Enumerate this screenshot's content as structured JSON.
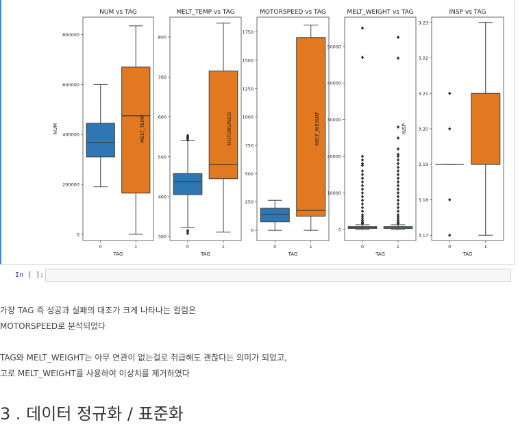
{
  "notebook": {
    "prompt": "In [ ]:",
    "code_input": "",
    "paragraph1_line1": "가장 TAG 즉 성공과 실패의 대조가 크게 나타나는 컬럼은",
    "paragraph1_line2": "MOTORSPEED로 분석되었다",
    "paragraph2_line1": "TAG와 MELT_WEIGHT는 아무 연관이 없는걸로 취급해도 괜찮다는 의미가 되었고,",
    "paragraph2_line2": "고로 MELT_WEIGHT를 사용하여 이상치를 제거하였다",
    "heading": "3 . 데이터 정규화 / 표준화"
  },
  "colors": {
    "tag0": "#2e77b3",
    "tag1": "#e2781f",
    "line": "#3d3d3d"
  },
  "chart_data": [
    {
      "type": "box",
      "title": "NUM vs TAG",
      "xlabel": "TAG",
      "ylabel": "NUM",
      "categories": [
        "0",
        "1"
      ],
      "ylim": [
        -25000,
        870000
      ],
      "yticks": [
        0,
        200000,
        400000,
        600000,
        800000
      ],
      "ytick_labels": [
        "0",
        "200000",
        "400000",
        "600000",
        "800000"
      ],
      "boxes": [
        {
          "whisker_low": 190000,
          "q1": 310000,
          "median": 368000,
          "q3": 445000,
          "whisker_high": 600000,
          "outliers": []
        },
        {
          "whisker_low": 0,
          "q1": 165000,
          "median": 475000,
          "q3": 670000,
          "whisker_high": 835000,
          "outliers": []
        }
      ]
    },
    {
      "type": "box",
      "title": "MELT_TEMP vs TAG",
      "xlabel": "TAG",
      "ylabel": "MELT_TEMP",
      "categories": [
        "0",
        "1"
      ],
      "ylim": [
        290,
        850
      ],
      "yticks": [
        300,
        400,
        500,
        600,
        700,
        800
      ],
      "ytick_labels": [
        "300",
        "400",
        "500",
        "600",
        "700",
        "800"
      ],
      "boxes": [
        {
          "whisker_low": 322,
          "q1": 405,
          "median": 438,
          "q3": 458,
          "whisker_high": 540,
          "outliers": [
            308,
            312,
            315,
            542,
            545,
            548,
            550,
            553
          ]
        },
        {
          "whisker_low": 311,
          "q1": 445,
          "median": 480,
          "q3": 715,
          "whisker_high": 835,
          "outliers": []
        }
      ]
    },
    {
      "type": "box",
      "title": "MOTORSPEED vs TAG",
      "xlabel": "TAG",
      "ylabel": "MOTORSPEED",
      "categories": [
        "0",
        "1"
      ],
      "ylim": [
        -90,
        1880
      ],
      "yticks": [
        0,
        250,
        500,
        750,
        1000,
        1250,
        1500,
        1750
      ],
      "ytick_labels": [
        "0",
        "250",
        "500",
        "750",
        "1000",
        "1250",
        "1500",
        "1750"
      ],
      "boxes": [
        {
          "whisker_low": 0,
          "q1": 75,
          "median": 140,
          "q3": 195,
          "whisker_high": 265,
          "outliers": []
        },
        {
          "whisker_low": 0,
          "q1": 125,
          "median": 175,
          "q3": 1700,
          "whisker_high": 1810,
          "outliers": []
        }
      ]
    },
    {
      "type": "box",
      "title": "MELT_WEIGHT vs TAG",
      "xlabel": "TAG",
      "ylabel": "MELT_WEIGHT",
      "categories": [
        "0",
        "1"
      ],
      "ylim": [
        -3000,
        58000
      ],
      "yticks": [
        0,
        10000,
        20000,
        30000,
        40000,
        50000
      ],
      "ytick_labels": [
        "0",
        "10000",
        "20000",
        "30000",
        "40000",
        "50000"
      ],
      "boxes": [
        {
          "whisker_low": 0,
          "q1": 300,
          "median": 500,
          "q3": 800,
          "whisker_high": 1300,
          "outliers": [
            55000,
            47000,
            20000,
            19000,
            18000,
            17500,
            16000,
            15000,
            14000,
            13000,
            12000,
            11000,
            10000,
            9000,
            8000,
            7000,
            6000,
            5000,
            4000,
            3500,
            3000,
            2500,
            2000,
            1800,
            1600
          ]
        },
        {
          "whisker_low": 0,
          "q1": 300,
          "median": 500,
          "q3": 800,
          "whisker_high": 1300,
          "outliers": [
            52500,
            46800,
            28000,
            25000,
            22000,
            20500,
            20000,
            19000,
            18000,
            17000,
            16000,
            15000,
            14000,
            13000,
            12000,
            11000,
            10000,
            9000,
            8000,
            7000,
            6000,
            5000,
            4000,
            3500,
            3000,
            2500,
            2000,
            1800,
            1600
          ]
        }
      ]
    },
    {
      "type": "box",
      "title": "INSP vs TAG",
      "xlabel": "TAG",
      "ylabel": "INSP",
      "categories": [
        "0",
        "1"
      ],
      "ylim": [
        3.1685,
        3.2315
      ],
      "yticks": [
        3.17,
        3.18,
        3.19,
        3.2,
        3.21,
        3.22,
        3.23
      ],
      "ytick_labels": [
        "3.17",
        "3.18",
        "3.19",
        "3.20",
        "3.21",
        "3.22",
        "3.23"
      ],
      "boxes": [
        {
          "whisker_low": 3.19,
          "q1": 3.19,
          "median": 3.19,
          "q3": 3.19,
          "whisker_high": 3.19,
          "outliers": [
            3.21,
            3.2,
            3.18,
            3.17
          ]
        },
        {
          "whisker_low": 3.17,
          "q1": 3.19,
          "median": 3.19,
          "q3": 3.21,
          "whisker_high": 3.23,
          "outliers": []
        }
      ]
    }
  ]
}
